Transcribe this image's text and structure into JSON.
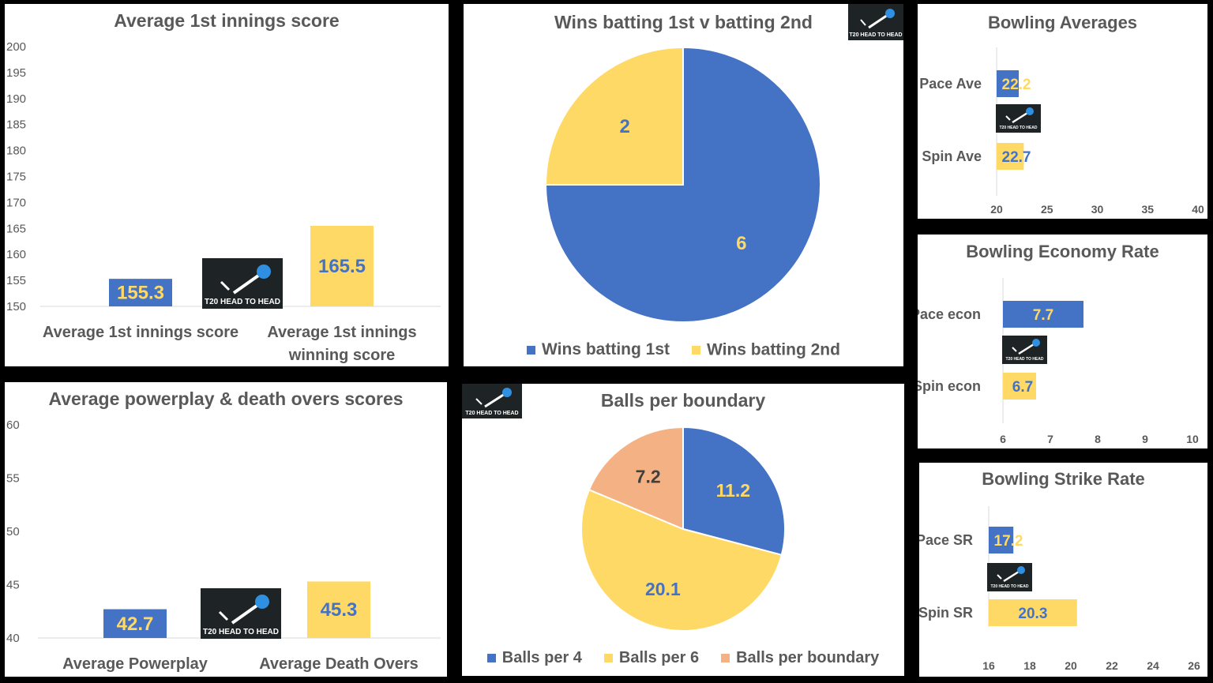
{
  "colors": {
    "blue": "#4472c4",
    "yellow": "#ffd966",
    "peach": "#f4b183",
    "axis_text": "#595959",
    "grid": "#d9d9d9"
  },
  "logo": {
    "icon": "cricket-ball-bat-icon",
    "text": "T20 HEAD TO HEAD"
  },
  "chart_data": [
    {
      "id": "first_innings",
      "type": "bar",
      "title": "Average 1st innings score",
      "categories": [
        "Average 1st innings score",
        "Average 1st innings winning score"
      ],
      "values": [
        155.3,
        165.5
      ],
      "value_labels": [
        "155.3",
        "165.5"
      ],
      "colors": [
        "#4472c4",
        "#ffd966"
      ],
      "ylim": [
        150,
        200
      ],
      "yticks": [
        "150",
        "155",
        "160",
        "165",
        "170",
        "175",
        "180",
        "185",
        "190",
        "195",
        "200"
      ]
    },
    {
      "id": "wins_pie",
      "type": "pie",
      "title": "Wins batting 1st v batting 2nd",
      "labels": [
        "Wins batting 1st",
        "Wins batting 2nd"
      ],
      "values": [
        6,
        2
      ],
      "value_labels": [
        "6",
        "2"
      ],
      "colors": [
        "#4472c4",
        "#ffd966"
      ],
      "legend": "bottom"
    },
    {
      "id": "bowling_avg",
      "type": "bar",
      "orientation": "horizontal",
      "title": "Bowling Averages",
      "categories": [
        "Pace Ave",
        "Spin Ave"
      ],
      "values": [
        22.2,
        22.7
      ],
      "value_labels": [
        "22.2",
        "22.7"
      ],
      "colors": [
        "#4472c4",
        "#ffd966"
      ],
      "xlim": [
        20,
        40
      ],
      "xticks": [
        "20",
        "25",
        "30",
        "35",
        "40"
      ]
    },
    {
      "id": "bowling_econ",
      "type": "bar",
      "orientation": "horizontal",
      "title": "Bowling Economy Rate",
      "categories": [
        "Pace econ",
        "Spin econ"
      ],
      "values": [
        7.7,
        6.7
      ],
      "value_labels": [
        "7.7",
        "6.7"
      ],
      "colors": [
        "#4472c4",
        "#ffd966"
      ],
      "xlim": [
        6,
        10
      ],
      "xticks": [
        "6",
        "7",
        "8",
        "9",
        "10"
      ]
    },
    {
      "id": "powerplay",
      "type": "bar",
      "title": "Average powerplay & death overs scores",
      "categories": [
        "Average Powerplay",
        "Average Death Overs"
      ],
      "values": [
        42.7,
        45.3
      ],
      "value_labels": [
        "42.7",
        "45.3"
      ],
      "colors": [
        "#4472c4",
        "#ffd966"
      ],
      "ylim": [
        40,
        60
      ],
      "yticks": [
        "40",
        "45",
        "50",
        "55",
        "60"
      ]
    },
    {
      "id": "boundary_pie",
      "type": "pie",
      "title": "Balls per boundary",
      "labels": [
        "Balls per 4",
        "Balls per 6",
        "Balls per boundary"
      ],
      "values": [
        11.2,
        20.1,
        7.2
      ],
      "value_labels": [
        "11.2",
        "20.1",
        "7.2"
      ],
      "colors": [
        "#4472c4",
        "#ffd966",
        "#f4b183"
      ],
      "legend": "bottom"
    },
    {
      "id": "strike_rate",
      "type": "bar",
      "orientation": "horizontal",
      "title": "Bowling Strike Rate",
      "categories": [
        "Pace SR",
        "Spin SR"
      ],
      "values": [
        17.2,
        20.3
      ],
      "value_labels": [
        "17.2",
        "20.3"
      ],
      "colors": [
        "#4472c4",
        "#ffd966"
      ],
      "xlim": [
        16,
        26
      ],
      "xticks": [
        "16",
        "18",
        "20",
        "22",
        "24",
        "26"
      ]
    }
  ]
}
